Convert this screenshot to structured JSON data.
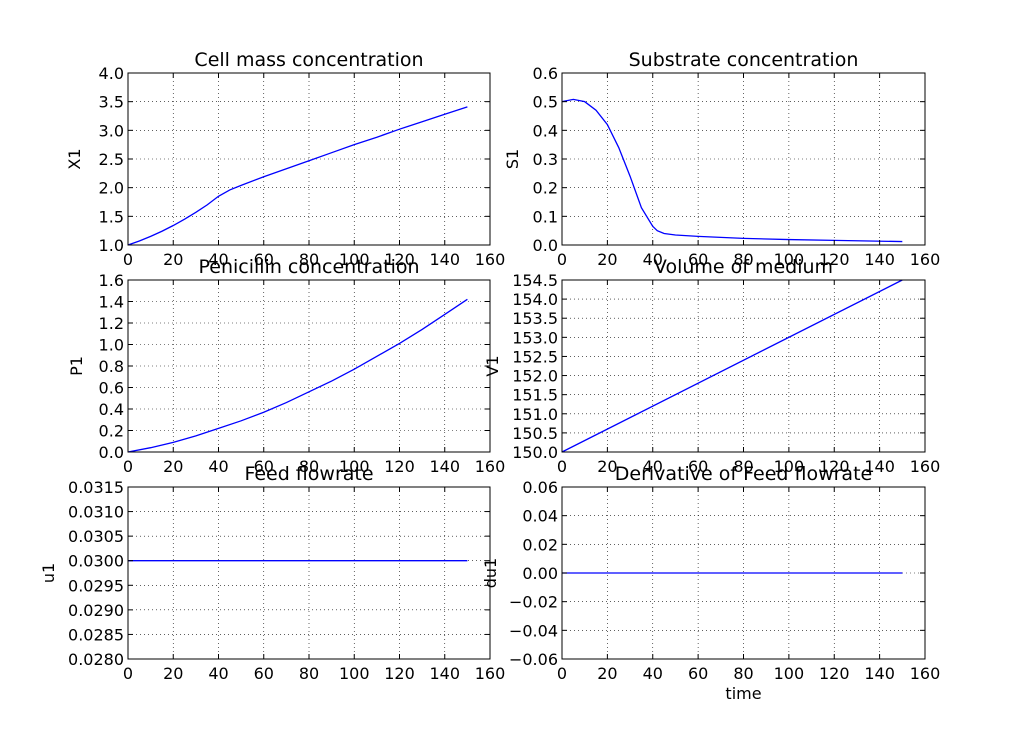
{
  "line_color": "#0000ff",
  "chart_data": [
    {
      "type": "line",
      "title": "Cell mass concentration",
      "ylabel": "X1",
      "xlabel": "",
      "xlim": [
        0,
        160
      ],
      "ylim": [
        1.0,
        4.0
      ],
      "xticks": [
        "0",
        "20",
        "40",
        "60",
        "80",
        "100",
        "120",
        "140",
        "160"
      ],
      "yticks": [
        "1.0",
        "1.5",
        "2.0",
        "2.5",
        "3.0",
        "3.5",
        "4.0"
      ],
      "grid": true,
      "series": [
        {
          "x": [
            0,
            5,
            10,
            15,
            20,
            25,
            30,
            35,
            40,
            45,
            50,
            60,
            70,
            80,
            90,
            100,
            110,
            120,
            130,
            140,
            150
          ],
          "y": [
            1.0,
            1.07,
            1.15,
            1.24,
            1.34,
            1.45,
            1.57,
            1.7,
            1.85,
            1.96,
            2.04,
            2.19,
            2.33,
            2.47,
            2.61,
            2.75,
            2.88,
            3.02,
            3.15,
            3.28,
            3.41
          ]
        }
      ]
    },
    {
      "type": "line",
      "title": "Substrate concentration",
      "ylabel": "S1",
      "xlabel": "",
      "xlim": [
        0,
        160
      ],
      "ylim": [
        0.0,
        0.6
      ],
      "xticks": [
        "0",
        "20",
        "40",
        "60",
        "80",
        "100",
        "120",
        "140",
        "160"
      ],
      "yticks": [
        "0.0",
        "0.1",
        "0.2",
        "0.3",
        "0.4",
        "0.5",
        "0.6"
      ],
      "grid": true,
      "series": [
        {
          "x": [
            0,
            5,
            10,
            15,
            20,
            25,
            30,
            35,
            40,
            42,
            45,
            50,
            60,
            80,
            100,
            120,
            150
          ],
          "y": [
            0.5,
            0.508,
            0.5,
            0.47,
            0.42,
            0.34,
            0.24,
            0.13,
            0.065,
            0.05,
            0.04,
            0.035,
            0.03,
            0.023,
            0.019,
            0.016,
            0.012
          ]
        }
      ]
    },
    {
      "type": "line",
      "title": "Penicillin concentration",
      "ylabel": "P1",
      "xlabel": "",
      "xlim": [
        0,
        160
      ],
      "ylim": [
        0.0,
        1.6
      ],
      "xticks": [
        "0",
        "20",
        "40",
        "60",
        "80",
        "100",
        "120",
        "140",
        "160"
      ],
      "yticks": [
        "0.0",
        "0.2",
        "0.4",
        "0.6",
        "0.8",
        "1.0",
        "1.2",
        "1.4",
        "1.6"
      ],
      "grid": true,
      "series": [
        {
          "x": [
            0,
            10,
            20,
            30,
            40,
            50,
            60,
            70,
            80,
            90,
            100,
            110,
            120,
            130,
            140,
            150
          ],
          "y": [
            0.0,
            0.04,
            0.09,
            0.15,
            0.22,
            0.29,
            0.37,
            0.46,
            0.56,
            0.66,
            0.77,
            0.89,
            1.01,
            1.14,
            1.28,
            1.42
          ]
        }
      ]
    },
    {
      "type": "line",
      "title": "Volume of medium",
      "ylabel": "V1",
      "xlabel": "",
      "xlim": [
        0,
        160
      ],
      "ylim": [
        150.0,
        154.5
      ],
      "xticks": [
        "0",
        "20",
        "40",
        "60",
        "80",
        "100",
        "120",
        "140",
        "160"
      ],
      "yticks": [
        "150.0",
        "150.5",
        "151.0",
        "151.5",
        "152.0",
        "152.5",
        "153.0",
        "153.5",
        "154.0",
        "154.5"
      ],
      "grid": true,
      "series": [
        {
          "x": [
            0,
            150
          ],
          "y": [
            150.0,
            154.5
          ]
        }
      ]
    },
    {
      "type": "line",
      "title": "Feed flowrate",
      "ylabel": "u1",
      "xlabel": "",
      "xlim": [
        0,
        160
      ],
      "ylim": [
        0.028,
        0.0315
      ],
      "xticks": [
        "0",
        "20",
        "40",
        "60",
        "80",
        "100",
        "120",
        "140",
        "160"
      ],
      "yticks": [
        "0.0280",
        "0.0285",
        "0.0290",
        "0.0295",
        "0.0300",
        "0.0305",
        "0.0310",
        "0.0315"
      ],
      "grid": true,
      "series": [
        {
          "x": [
            0,
            150
          ],
          "y": [
            0.03,
            0.03
          ]
        }
      ]
    },
    {
      "type": "line",
      "title": "Derivative of Feed flowrate",
      "ylabel": "du1",
      "xlabel": "time",
      "xlim": [
        0,
        160
      ],
      "ylim": [
        -0.06,
        0.06
      ],
      "xticks": [
        "0",
        "20",
        "40",
        "60",
        "80",
        "100",
        "120",
        "140",
        "160"
      ],
      "yticks": [
        "−0.06",
        "−0.04",
        "−0.02",
        "0.00",
        "0.02",
        "0.04",
        "0.06"
      ],
      "grid": true,
      "series": [
        {
          "x": [
            0,
            150
          ],
          "y": [
            0.0,
            0.0
          ]
        }
      ]
    }
  ]
}
